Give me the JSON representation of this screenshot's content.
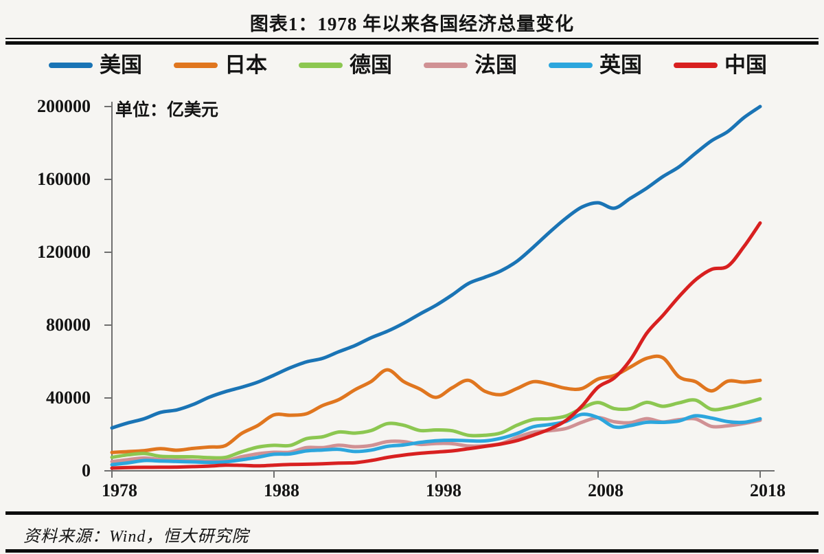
{
  "page": {
    "background": "#f6f5f2"
  },
  "header": {
    "title": "图表1：1978 年以来各国经济总量变化"
  },
  "legend": {
    "items": [
      {
        "key": "us",
        "label": "美国",
        "color": "#1a74b5"
      },
      {
        "key": "japan",
        "label": "日本",
        "color": "#e0761f"
      },
      {
        "key": "germany",
        "label": "德国",
        "color": "#8cc751"
      },
      {
        "key": "france",
        "label": "法国",
        "color": "#d09194"
      },
      {
        "key": "uk",
        "label": "英国",
        "color": "#2ca6dd"
      },
      {
        "key": "china",
        "label": "中国",
        "color": "#d82020"
      }
    ]
  },
  "chart": {
    "unit_label": "单位：亿美元",
    "axis_color": "#6f6f6f",
    "y_ticks": [
      0,
      40000,
      80000,
      120000,
      160000,
      200000
    ],
    "x_ticks": [
      1978,
      1988,
      1998,
      2008,
      2018
    ]
  },
  "chart_data": {
    "type": "line",
    "title": "图表1：1978 年以来各国经济总量变化",
    "unit": "亿美元",
    "xlabel": "",
    "ylabel": "亿美元",
    "xlim": [
      1978,
      2018
    ],
    "ylim": [
      0,
      200000
    ],
    "grid": false,
    "legend_position": "top",
    "x": [
      1978,
      1979,
      1980,
      1981,
      1982,
      1983,
      1984,
      1985,
      1986,
      1987,
      1988,
      1989,
      1990,
      1991,
      1992,
      1993,
      1994,
      1995,
      1996,
      1997,
      1998,
      1999,
      2000,
      2001,
      2002,
      2003,
      2004,
      2005,
      2006,
      2007,
      2008,
      2009,
      2010,
      2011,
      2012,
      2013,
      2014,
      2015,
      2016,
      2017,
      2018
    ],
    "series": [
      {
        "key": "us",
        "name": "美国",
        "color": "#1a74b5",
        "values": [
          23566,
          26321,
          28625,
          32110,
          33450,
          36381,
          40407,
          43467,
          45902,
          48702,
          52526,
          56577,
          59796,
          61740,
          65393,
          68787,
          73088,
          76641,
          81002,
          86085,
          90892,
          96606,
          102848,
          106218,
          109775,
          115107,
          122749,
          130937,
          138559,
          144776,
          147186,
          144187,
          149644,
          155179,
          161553,
          166915,
          174276,
          181207,
          186245,
          193906,
          200000
        ]
      },
      {
        "key": "japan",
        "name": "日本",
        "color": "#e0761f",
        "values": [
          10128,
          10552,
          11100,
          12189,
          11305,
          12318,
          13073,
          13847,
          20511,
          24885,
          30717,
          30544,
          31330,
          35842,
          39084,
          44543,
          49070,
          55457,
          49018,
          44920,
          40330,
          45622,
          49683,
          43745,
          41823,
          45193,
          48931,
          47555,
          45302,
          45153,
          50379,
          52311,
          57001,
          61755,
          62032,
          51556,
          48963,
          43894,
          49226,
          48668,
          49709
        ]
      },
      {
        "key": "germany",
        "name": "德国",
        "color": "#8cc751",
        "values": [
          7400,
          8790,
          9500,
          8000,
          7750,
          7700,
          7250,
          7350,
          10470,
          13000,
          14010,
          13930,
          17650,
          18680,
          21310,
          20720,
          22100,
          25920,
          25030,
          22160,
          22440,
          22000,
          19500,
          19510,
          20790,
          25060,
          28190,
          28610,
          30020,
          34390,
          37520,
          34180,
          34170,
          37580,
          35440,
          37330,
          38840,
          33770,
          34690,
          36930,
          39500
        ]
      },
      {
        "key": "france",
        "name": "法国",
        "color": "#d09194",
        "values": [
          5070,
          6140,
          7020,
          6160,
          5850,
          5590,
          5310,
          5530,
          7720,
          9340,
          10180,
          10250,
          12750,
          12750,
          14020,
          13220,
          13940,
          16020,
          16050,
          14520,
          15030,
          14920,
          13630,
          13780,
          14940,
          18400,
          21160,
          22040,
          23200,
          26630,
          29230,
          26940,
          26450,
          28630,
          26830,
          28120,
          28520,
          24390,
          24720,
          25950,
          27780
        ]
      },
      {
        "key": "uk",
        "name": "英国",
        "color": "#2ca6dd",
        "values": [
          3360,
          4390,
          5650,
          5400,
          5150,
          4900,
          4620,
          4890,
          6020,
          7450,
          9100,
          9270,
          10930,
          11430,
          11800,
          10610,
          11410,
          13450,
          14200,
          15580,
          16530,
          16810,
          16530,
          16400,
          17840,
          20530,
          24170,
          25380,
          27080,
          31010,
          29220,
          24130,
          24850,
          26640,
          26620,
          27400,
          30230,
          28970,
          27000,
          26660,
          28550
        ]
      },
      {
        "key": "china",
        "name": "中国",
        "color": "#d82020",
        "values": [
          1495,
          1782,
          1911,
          1959,
          2054,
          2306,
          2601,
          3095,
          3005,
          2729,
          3124,
          3479,
          3608,
          3834,
          4269,
          4447,
          5643,
          7345,
          8637,
          9616,
          10292,
          10939,
          12113,
          13394,
          14705,
          16602,
          19553,
          22860,
          27521,
          35524,
          45941,
          51017,
          61005,
          75515,
          85322,
          95705,
          104756,
          110616,
          112330,
          123104,
          136082
        ]
      }
    ]
  },
  "footer": {
    "source": "资料来源：Wind，恒大研究院"
  }
}
